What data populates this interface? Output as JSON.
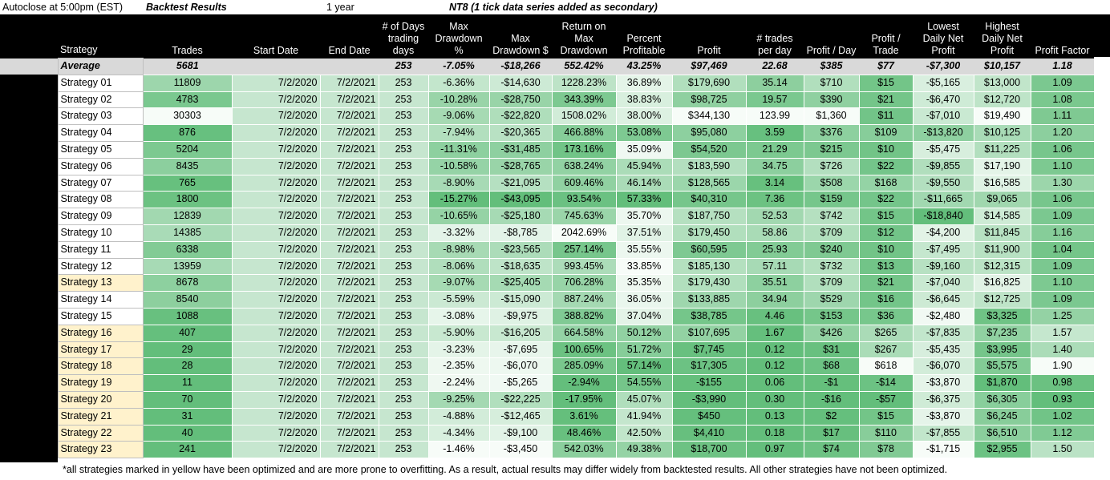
{
  "title_row": {
    "autoclose": "Autoclose at 5:00pm (EST)",
    "report": "Backtest Results",
    "period": "1 year",
    "instrument": "NT8 (1 tick data series added as secondary)"
  },
  "columns": [
    "Strategy",
    "Trades",
    "Start Date",
    "End Date",
    "# of Days trading days",
    "Max Drawdown %",
    "Max Drawdown $",
    "Return on Max Drawdown",
    "Percent Profitable",
    "Profit",
    "# trades per day",
    "Profit / Day",
    "Profit / Trade",
    "Lowest Daily Net Profit",
    "Highest Daily Net Profit",
    "Profit Factor"
  ],
  "average": [
    "Average",
    "5681",
    "",
    "",
    "253",
    "-7.05%",
    "-$18,266",
    "552.42%",
    "43.25%",
    "$97,469",
    "22.68",
    "$385",
    "$77",
    "-$7,300",
    "$10,157",
    "1.18"
  ],
  "rows": [
    {
      "name": "Strategy 01",
      "opt": false,
      "cells": [
        "11809",
        "7/2/2020",
        "7/2/2021",
        "253",
        "-6.36%",
        "-$14,630",
        "1228.23%",
        "36.89%",
        "$179,690",
        "35.14",
        "$710",
        "$15",
        "-$5,165",
        "$13,000",
        "1.09"
      ]
    },
    {
      "name": "Strategy 02",
      "opt": false,
      "cells": [
        "4783",
        "7/2/2020",
        "7/2/2021",
        "253",
        "-10.28%",
        "-$28,750",
        "343.39%",
        "38.83%",
        "$98,725",
        "19.57",
        "$390",
        "$21",
        "-$6,470",
        "$12,720",
        "1.08"
      ]
    },
    {
      "name": "Strategy 03",
      "opt": false,
      "cells": [
        "30303",
        "7/2/2020",
        "7/2/2021",
        "253",
        "-9.06%",
        "-$22,820",
        "1508.02%",
        "38.00%",
        "$344,130",
        "123.99",
        "$1,360",
        "$11",
        "-$7,010",
        "$19,490",
        "1.11"
      ]
    },
    {
      "name": "Strategy 04",
      "opt": false,
      "cells": [
        "876",
        "7/2/2020",
        "7/2/2021",
        "253",
        "-7.94%",
        "-$20,365",
        "466.88%",
        "53.08%",
        "$95,080",
        "3.59",
        "$376",
        "$109",
        "-$13,820",
        "$10,125",
        "1.20"
      ]
    },
    {
      "name": "Strategy 05",
      "opt": false,
      "cells": [
        "5204",
        "7/2/2020",
        "7/2/2021",
        "253",
        "-11.31%",
        "-$31,485",
        "173.16%",
        "35.09%",
        "$54,520",
        "21.29",
        "$215",
        "$10",
        "-$5,475",
        "$11,225",
        "1.06"
      ]
    },
    {
      "name": "Strategy 06",
      "opt": false,
      "cells": [
        "8435",
        "7/2/2020",
        "7/2/2021",
        "253",
        "-10.58%",
        "-$28,765",
        "638.24%",
        "45.94%",
        "$183,590",
        "34.75",
        "$726",
        "$22",
        "-$9,855",
        "$17,190",
        "1.10"
      ]
    },
    {
      "name": "Strategy 07",
      "opt": false,
      "cells": [
        "765",
        "7/2/2020",
        "7/2/2021",
        "253",
        "-8.90%",
        "-$21,095",
        "609.46%",
        "46.14%",
        "$128,565",
        "3.14",
        "$508",
        "$168",
        "-$9,550",
        "$16,585",
        "1.30"
      ]
    },
    {
      "name": "Strategy 08",
      "opt": false,
      "cells": [
        "1800",
        "7/2/2020",
        "7/2/2021",
        "253",
        "-15.27%",
        "-$43,095",
        "93.54%",
        "57.33%",
        "$40,310",
        "7.36",
        "$159",
        "$22",
        "-$11,665",
        "$9,065",
        "1.06"
      ]
    },
    {
      "name": "Strategy 09",
      "opt": false,
      "cells": [
        "12839",
        "7/2/2020",
        "7/2/2021",
        "253",
        "-10.65%",
        "-$25,180",
        "745.63%",
        "35.70%",
        "$187,750",
        "52.53",
        "$742",
        "$15",
        "-$18,840",
        "$14,585",
        "1.09"
      ]
    },
    {
      "name": "Strategy 10",
      "opt": false,
      "cells": [
        "14385",
        "7/2/2020",
        "7/2/2021",
        "253",
        "-3.32%",
        "-$8,785",
        "2042.69%",
        "37.51%",
        "$179,450",
        "58.86",
        "$709",
        "$12",
        "-$4,200",
        "$11,845",
        "1.16"
      ]
    },
    {
      "name": "Strategy 11",
      "opt": false,
      "cells": [
        "6338",
        "7/2/2020",
        "7/2/2021",
        "253",
        "-8.98%",
        "-$23,565",
        "257.14%",
        "35.55%",
        "$60,595",
        "25.93",
        "$240",
        "$10",
        "-$7,495",
        "$11,900",
        "1.04"
      ]
    },
    {
      "name": "Strategy 12",
      "opt": false,
      "cells": [
        "13959",
        "7/2/2020",
        "7/2/2021",
        "253",
        "-8.06%",
        "-$18,635",
        "993.45%",
        "33.85%",
        "$185,130",
        "57.11",
        "$732",
        "$13",
        "-$9,160",
        "$12,315",
        "1.09"
      ]
    },
    {
      "name": "Strategy 13",
      "opt": true,
      "cells": [
        "8678",
        "7/2/2020",
        "7/2/2021",
        "253",
        "-9.07%",
        "-$25,405",
        "706.28%",
        "35.35%",
        "$179,430",
        "35.51",
        "$709",
        "$21",
        "-$7,040",
        "$16,825",
        "1.10"
      ]
    },
    {
      "name": "Strategy 14",
      "opt": false,
      "cells": [
        "8540",
        "7/2/2020",
        "7/2/2021",
        "253",
        "-5.59%",
        "-$15,090",
        "887.24%",
        "36.05%",
        "$133,885",
        "34.94",
        "$529",
        "$16",
        "-$6,645",
        "$12,725",
        "1.09"
      ]
    },
    {
      "name": "Strategy 15",
      "opt": false,
      "cells": [
        "1088",
        "7/2/2020",
        "7/2/2021",
        "253",
        "-3.08%",
        "-$9,975",
        "388.82%",
        "37.04%",
        "$38,785",
        "4.46",
        "$153",
        "$36",
        "-$2,480",
        "$3,325",
        "1.25"
      ]
    },
    {
      "name": "Strategy 16",
      "opt": true,
      "cells": [
        "407",
        "7/2/2020",
        "7/2/2021",
        "253",
        "-5.90%",
        "-$16,205",
        "664.58%",
        "50.12%",
        "$107,695",
        "1.67",
        "$426",
        "$265",
        "-$7,835",
        "$7,235",
        "1.57"
      ]
    },
    {
      "name": "Strategy 17",
      "opt": true,
      "cells": [
        "29",
        "7/2/2020",
        "7/2/2021",
        "253",
        "-3.23%",
        "-$7,695",
        "100.65%",
        "51.72%",
        "$7,745",
        "0.12",
        "$31",
        "$267",
        "-$5,435",
        "$3,995",
        "1.40"
      ]
    },
    {
      "name": "Strategy 18",
      "opt": true,
      "cells": [
        "28",
        "7/2/2020",
        "7/2/2021",
        "253",
        "-2.35%",
        "-$6,070",
        "285.09%",
        "57.14%",
        "$17,305",
        "0.12",
        "$68",
        "$618",
        "-$6,070",
        "$5,575",
        "1.90"
      ]
    },
    {
      "name": "Strategy 19",
      "opt": true,
      "cells": [
        "11",
        "7/2/2020",
        "7/2/2021",
        "253",
        "-2.24%",
        "-$5,265",
        "-2.94%",
        "54.55%",
        "-$155",
        "0.06",
        "-$1",
        "-$14",
        "-$3,870",
        "$1,870",
        "0.98"
      ]
    },
    {
      "name": "Strategy 20",
      "opt": true,
      "cells": [
        "70",
        "7/2/2020",
        "7/2/2021",
        "253",
        "-9.25%",
        "-$22,225",
        "-17.95%",
        "45.07%",
        "-$3,990",
        "0.30",
        "-$16",
        "-$57",
        "-$6,375",
        "$6,305",
        "0.93"
      ]
    },
    {
      "name": "Strategy 21",
      "opt": true,
      "cells": [
        "31",
        "7/2/2020",
        "7/2/2021",
        "253",
        "-4.88%",
        "-$12,465",
        "3.61%",
        "41.94%",
        "$450",
        "0.13",
        "$2",
        "$15",
        "-$3,870",
        "$6,245",
        "1.02"
      ]
    },
    {
      "name": "Strategy 22",
      "opt": true,
      "cells": [
        "40",
        "7/2/2020",
        "7/2/2021",
        "253",
        "-4.34%",
        "-$9,100",
        "48.46%",
        "42.50%",
        "$4,410",
        "0.18",
        "$17",
        "$110",
        "-$7,855",
        "$6,510",
        "1.12"
      ]
    },
    {
      "name": "Strategy 23",
      "opt": true,
      "cells": [
        "241",
        "7/2/2020",
        "7/2/2021",
        "253",
        "-1.46%",
        "-$3,450",
        "542.03%",
        "49.38%",
        "$18,700",
        "0.97",
        "$74",
        "$78",
        "-$1,715",
        "$2,955",
        "1.50"
      ]
    }
  ],
  "footer": "*all strategies marked in yellow  have been optimized and are more prone to overfitting. As a result, actual results may differ widely from backtested results. All other strategies have not been optimized.",
  "colors": {
    "header_bg": "#000000",
    "average_bg": "#d9d9d9",
    "optimized_bg": "#fff2cc",
    "dark_green": "#63be7b",
    "white": "#ffffff"
  }
}
